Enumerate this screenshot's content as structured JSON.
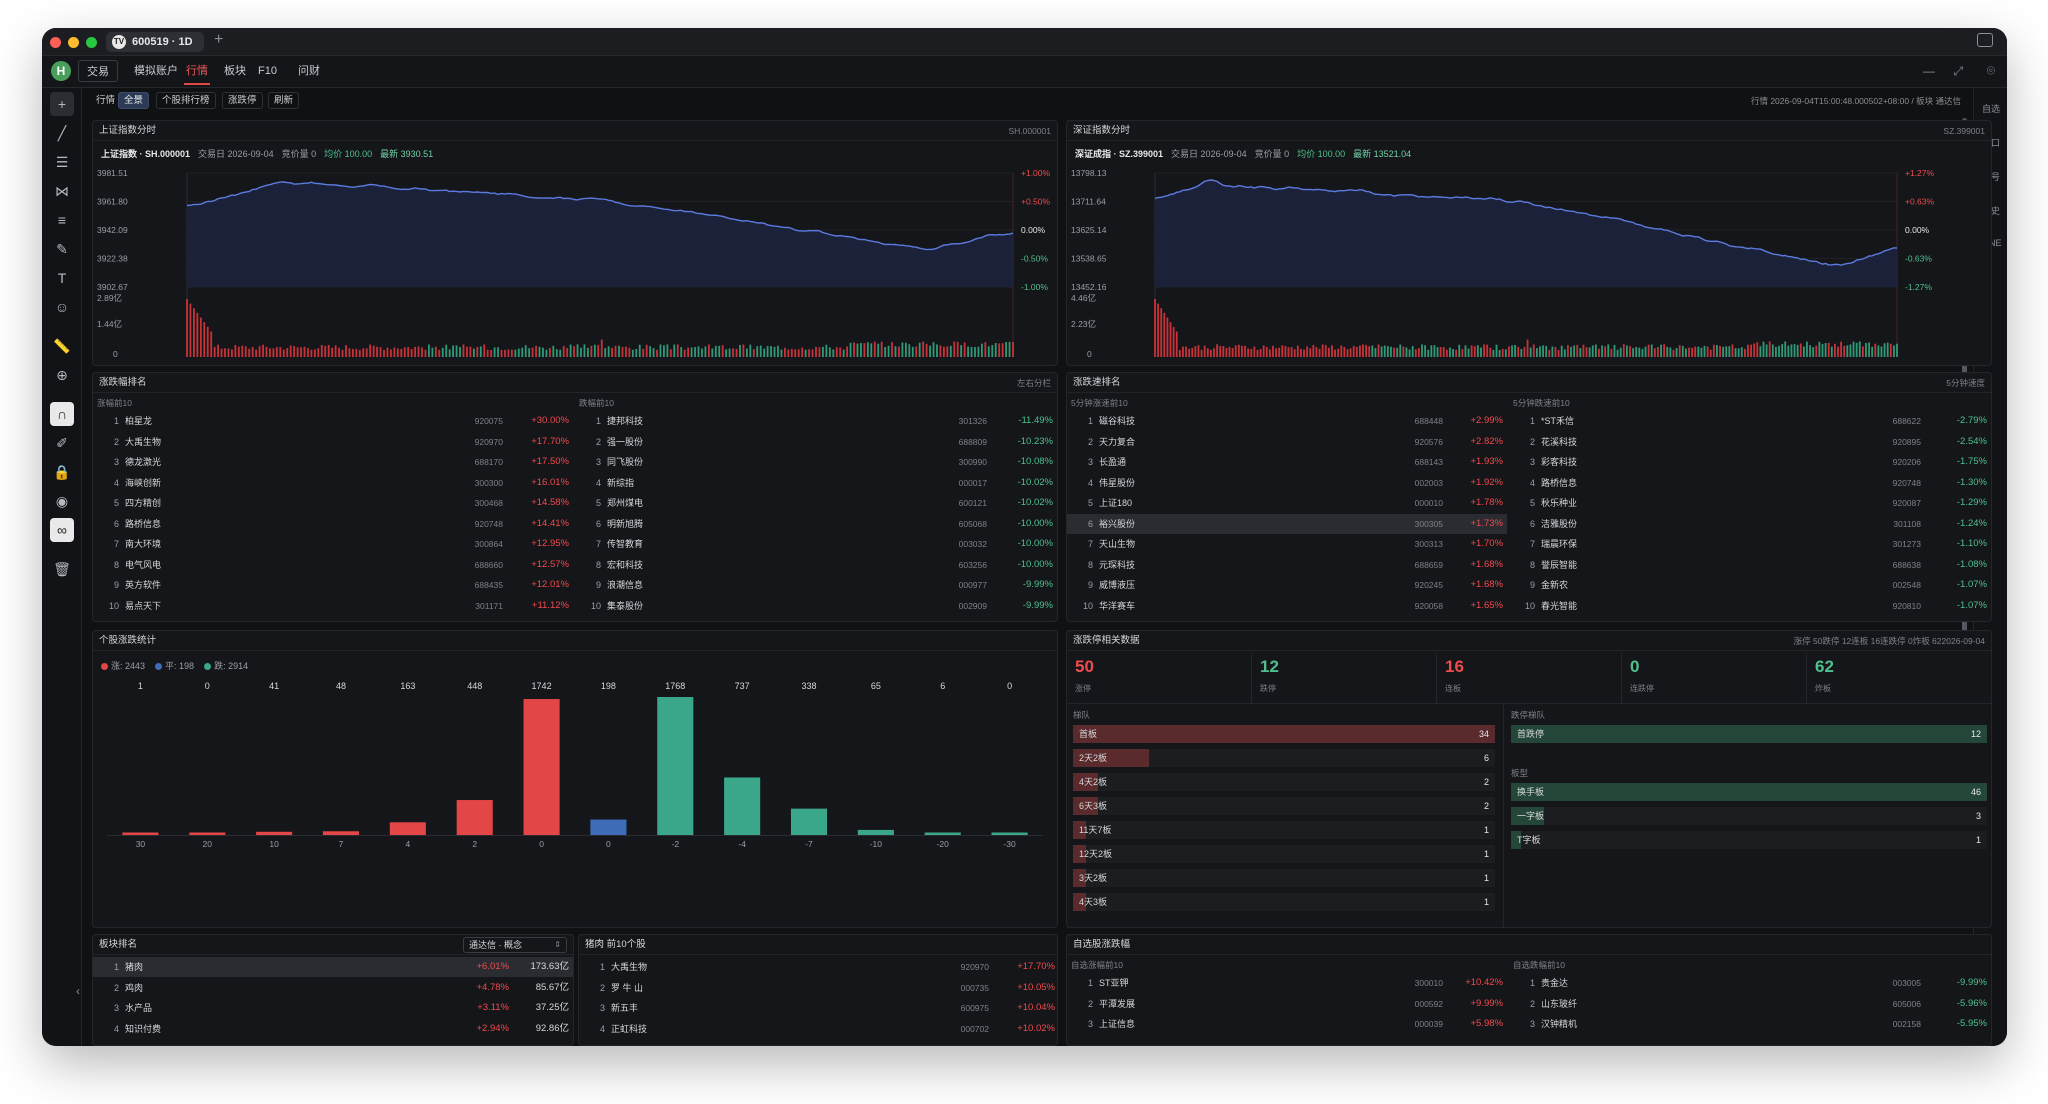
{
  "titlebar": {
    "tab_label": "600519 · 1D",
    "tab_icon_text": "TV",
    "new_tab": "+"
  },
  "menubar": {
    "logo": "H",
    "items": [
      {
        "label": "交易",
        "style": "boxed"
      },
      {
        "label": "模拟账户",
        "style": "plain"
      },
      {
        "label": "行情",
        "style": "active"
      },
      {
        "label": "板块",
        "style": "plain"
      },
      {
        "label": "F10",
        "style": "plain"
      },
      {
        "label": "问财",
        "style": "plain"
      }
    ]
  },
  "subbar": {
    "items": [
      "行情",
      "全景",
      "个股排行榜",
      "涨跌停",
      "刷新"
    ],
    "active_index": 1,
    "status": "行情 2026-09-04T15:00:48.000502+08:00 / 板块 通达信"
  },
  "right_toolbar": [
    "自选",
    "盘口",
    "信号",
    "历史",
    "PINE"
  ],
  "sh_chart": {
    "panel_title": "上证指数分时",
    "panel_code": "SH.000001",
    "name": "上证指数 · SH.000001",
    "trade_date": "交易日 2026-09-04",
    "auction": "竞价量 0",
    "avg": "均价 100.00",
    "latest": "最新 3930.51",
    "y_labels": [
      "3981.51",
      "3961.80",
      "3942.09",
      "3922.38",
      "3902.67"
    ],
    "pct_labels": [
      "+1.00%",
      "+0.50%",
      "0.00%",
      "-0.50%",
      "-1.00%"
    ],
    "vol_labels": [
      "2.89亿",
      "1.44亿",
      "0"
    ]
  },
  "sz_chart": {
    "panel_title": "深证指数分时",
    "panel_code": "SZ.399001",
    "name": "深证成指 · SZ.399001",
    "trade_date": "交易日 2026-09-04",
    "auction": "竞价量 0",
    "avg": "均价 100.00",
    "latest": "最新 13521.04",
    "y_labels": [
      "13798.13",
      "13711.64",
      "13625.14",
      "13538.65",
      "13452.16"
    ],
    "pct_labels": [
      "+1.27%",
      "+0.63%",
      "0.00%",
      "-0.63%",
      "-1.27%"
    ],
    "vol_labels": [
      "4.46亿",
      "2.23亿",
      "0"
    ]
  },
  "rank": {
    "panel_title": "涨跌幅排名",
    "panel_right": "左右分栏",
    "up_title": "涨幅前10",
    "down_title": "跌幅前10",
    "up": [
      {
        "rank": "1",
        "name": "柏星龙",
        "code": "920075",
        "pct": "+30.00%"
      },
      {
        "rank": "2",
        "name": "大禹生物",
        "code": "920970",
        "pct": "+17.70%"
      },
      {
        "rank": "3",
        "name": "德龙激光",
        "code": "688170",
        "pct": "+17.50%"
      },
      {
        "rank": "4",
        "name": "海峡创新",
        "code": "300300",
        "pct": "+16.01%"
      },
      {
        "rank": "5",
        "name": "四方精创",
        "code": "300468",
        "pct": "+14.58%"
      },
      {
        "rank": "6",
        "name": "路桥信息",
        "code": "920748",
        "pct": "+14.41%"
      },
      {
        "rank": "7",
        "name": "南大环境",
        "code": "300864",
        "pct": "+12.95%"
      },
      {
        "rank": "8",
        "name": "电气风电",
        "code": "688660",
        "pct": "+12.57%"
      },
      {
        "rank": "9",
        "name": "英方软件",
        "code": "688435",
        "pct": "+12.01%"
      },
      {
        "rank": "10",
        "name": "易点天下",
        "code": "301171",
        "pct": "+11.12%"
      }
    ],
    "down": [
      {
        "rank": "1",
        "name": "捷邦科技",
        "code": "301326",
        "pct": "-11.49%"
      },
      {
        "rank": "2",
        "name": "强一股份",
        "code": "688809",
        "pct": "-10.23%"
      },
      {
        "rank": "3",
        "name": "同飞股份",
        "code": "300990",
        "pct": "-10.08%"
      },
      {
        "rank": "4",
        "name": "新综指",
        "code": "000017",
        "pct": "-10.02%"
      },
      {
        "rank": "5",
        "name": "郑州煤电",
        "code": "600121",
        "pct": "-10.02%"
      },
      {
        "rank": "6",
        "name": "明新旭腾",
        "code": "605068",
        "pct": "-10.00%"
      },
      {
        "rank": "7",
        "name": "传智教育",
        "code": "003032",
        "pct": "-10.00%"
      },
      {
        "rank": "8",
        "name": "宏和科技",
        "code": "603256",
        "pct": "-10.00%"
      },
      {
        "rank": "9",
        "name": "浪潮信息",
        "code": "000977",
        "pct": "-9.99%"
      },
      {
        "rank": "10",
        "name": "集泰股份",
        "code": "002909",
        "pct": "-9.99%"
      }
    ]
  },
  "speed": {
    "panel_title": "涨跌速排名",
    "panel_right": "5分钟速度",
    "up_title": "5分钟涨速前10",
    "down_title": "5分钟跌速前10",
    "up": [
      {
        "rank": "1",
        "name": "磁谷科技",
        "code": "688448",
        "pct": "+2.99%"
      },
      {
        "rank": "2",
        "name": "天力复合",
        "code": "920576",
        "pct": "+2.82%"
      },
      {
        "rank": "3",
        "name": "长盈通",
        "code": "688143",
        "pct": "+1.93%"
      },
      {
        "rank": "4",
        "name": "伟星股份",
        "code": "002003",
        "pct": "+1.92%"
      },
      {
        "rank": "5",
        "name": "上证180",
        "code": "000010",
        "pct": "+1.78%"
      },
      {
        "rank": "6",
        "name": "裕兴股份",
        "code": "300305",
        "pct": "+1.73%"
      },
      {
        "rank": "7",
        "name": "天山生物",
        "code": "300313",
        "pct": "+1.70%"
      },
      {
        "rank": "8",
        "name": "元琛科技",
        "code": "688659",
        "pct": "+1.68%"
      },
      {
        "rank": "9",
        "name": "威博液压",
        "code": "920245",
        "pct": "+1.68%"
      },
      {
        "rank": "10",
        "name": "华洋赛车",
        "code": "920058",
        "pct": "+1.65%"
      }
    ],
    "down": [
      {
        "rank": "1",
        "name": "*ST禾信",
        "code": "688622",
        "pct": "-2.79%"
      },
      {
        "rank": "2",
        "name": "花溪科技",
        "code": "920895",
        "pct": "-2.54%"
      },
      {
        "rank": "3",
        "name": "彩客科技",
        "code": "920206",
        "pct": "-1.75%"
      },
      {
        "rank": "4",
        "name": "路桥信息",
        "code": "920748",
        "pct": "-1.30%"
      },
      {
        "rank": "5",
        "name": "秋乐种业",
        "code": "920087",
        "pct": "-1.29%"
      },
      {
        "rank": "6",
        "name": "洁雅股份",
        "code": "301108",
        "pct": "-1.24%"
      },
      {
        "rank": "7",
        "name": "瑞晨环保",
        "code": "301273",
        "pct": "-1.10%"
      },
      {
        "rank": "8",
        "name": "誉辰智能",
        "code": "688638",
        "pct": "-1.08%"
      },
      {
        "rank": "9",
        "name": "金新农",
        "code": "002548",
        "pct": "-1.07%"
      },
      {
        "rank": "10",
        "name": "春光智能",
        "code": "920810",
        "pct": "-1.07%"
      }
    ],
    "highlight_index": 5
  },
  "distribution": {
    "panel_title": "个股涨跌统计",
    "legend": [
      {
        "label": "涨: 2443",
        "color": "#e34646"
      },
      {
        "label": "平: 198",
        "color": "#3f6cb8"
      },
      {
        "label": "跌: 2914",
        "color": "#3aa68a"
      }
    ]
  },
  "chart_data": {
    "type": "bar",
    "categories": [
      "30",
      "20",
      "10",
      "7",
      "4",
      "2",
      "0",
      "0",
      "-2",
      "-4",
      "-7",
      "-10",
      "-20",
      "-30"
    ],
    "values": [
      1,
      0,
      41,
      48,
      163,
      448,
      1742,
      198,
      1768,
      737,
      338,
      65,
      6,
      0
    ],
    "value_labels": [
      "1",
      "0",
      "41",
      "48",
      "163",
      "448",
      "1742",
      "198",
      "1768",
      "737",
      "338",
      "65",
      "6",
      "0"
    ],
    "colors": [
      "#e34646",
      "#e34646",
      "#e34646",
      "#e34646",
      "#e34646",
      "#e34646",
      "#e34646",
      "#3f6cb8",
      "#3aa68a",
      "#3aa68a",
      "#3aa68a",
      "#3aa68a",
      "#3aa68a",
      "#3aa68a"
    ],
    "ylim": [
      0,
      1768
    ],
    "grid": false
  },
  "limit": {
    "panel_title": "涨跌停相关数据",
    "panel_right": "涨停 50跌停 12连板 16连跌停 0炸板 622026-09-04",
    "stats": [
      {
        "value": "50",
        "label": "涨停",
        "color": "#f04b4b"
      },
      {
        "value": "12",
        "label": "跌停",
        "color": "#4fc08d"
      },
      {
        "value": "16",
        "label": "连板",
        "color": "#f04b4b"
      },
      {
        "value": "0",
        "label": "连跌停",
        "color": "#4fc08d"
      },
      {
        "value": "62",
        "label": "炸板",
        "color": "#4fc08d"
      }
    ],
    "ladder_title": "梯队",
    "ladder": [
      {
        "name": "首板",
        "count": "34",
        "ratio": 1.0
      },
      {
        "name": "2天2板",
        "count": "6",
        "ratio": 0.18
      },
      {
        "name": "4天2板",
        "count": "2",
        "ratio": 0.06
      },
      {
        "name": "6天3板",
        "count": "2",
        "ratio": 0.06
      },
      {
        "name": "11天7板",
        "count": "1",
        "ratio": 0.03
      },
      {
        "name": "12天2板",
        "count": "1",
        "ratio": 0.03
      },
      {
        "name": "3天2板",
        "count": "1",
        "ratio": 0.03
      },
      {
        "name": "4天3板",
        "count": "1",
        "ratio": 0.03
      }
    ],
    "down_ladder_title": "跌停梯队",
    "down_ladder": [
      {
        "name": "首跌停",
        "count": "12",
        "ratio": 1.0
      }
    ],
    "type_title": "板型",
    "types": [
      {
        "name": "换手板",
        "count": "46",
        "ratio": 1.0
      },
      {
        "name": "一字板",
        "count": "3",
        "ratio": 0.07
      },
      {
        "name": "T字板",
        "count": "1",
        "ratio": 0.02
      }
    ]
  },
  "sectors": {
    "panel_title": "板块排名",
    "select_value": "通达信 · 概念",
    "rows": [
      {
        "rank": "1",
        "name": "猪肉",
        "pct": "+6.01%",
        "amount": "173.63亿"
      },
      {
        "rank": "2",
        "name": "鸡肉",
        "pct": "+4.78%",
        "amount": "85.67亿"
      },
      {
        "rank": "3",
        "name": "水产品",
        "pct": "+3.11%",
        "amount": "37.25亿"
      },
      {
        "rank": "4",
        "name": "知识付费",
        "pct": "+2.94%",
        "amount": "92.86亿"
      }
    ]
  },
  "pork": {
    "panel_title": "猪肉 前10个股",
    "rows": [
      {
        "rank": "1",
        "name": "大禹生物",
        "code": "920970",
        "pct": "+17.70%"
      },
      {
        "rank": "2",
        "name": "罗 牛 山",
        "code": "000735",
        "pct": "+10.05%"
      },
      {
        "rank": "3",
        "name": "新五丰",
        "code": "600975",
        "pct": "+10.04%"
      },
      {
        "rank": "4",
        "name": "正虹科技",
        "code": "000702",
        "pct": "+10.02%"
      }
    ]
  },
  "watch": {
    "panel_title": "自选股涨跌幅",
    "up_title": "自选涨幅前10",
    "down_title": "自选跌幅前10",
    "up": [
      {
        "rank": "1",
        "name": "ST亚钾",
        "code": "300010",
        "pct": "+10.42%"
      },
      {
        "rank": "2",
        "name": "平潭发展",
        "code": "000592",
        "pct": "+9.99%"
      },
      {
        "rank": "3",
        "name": "上证信息",
        "code": "000039",
        "pct": "+5.98%"
      }
    ],
    "down": [
      {
        "rank": "1",
        "name": "贵金达",
        "code": "003005",
        "pct": "-9.99%"
      },
      {
        "rank": "2",
        "name": "山东玻纤",
        "code": "605006",
        "pct": "-5.96%"
      },
      {
        "rank": "3",
        "name": "汉钟精机",
        "code": "002158",
        "pct": "-5.95%"
      }
    ]
  }
}
